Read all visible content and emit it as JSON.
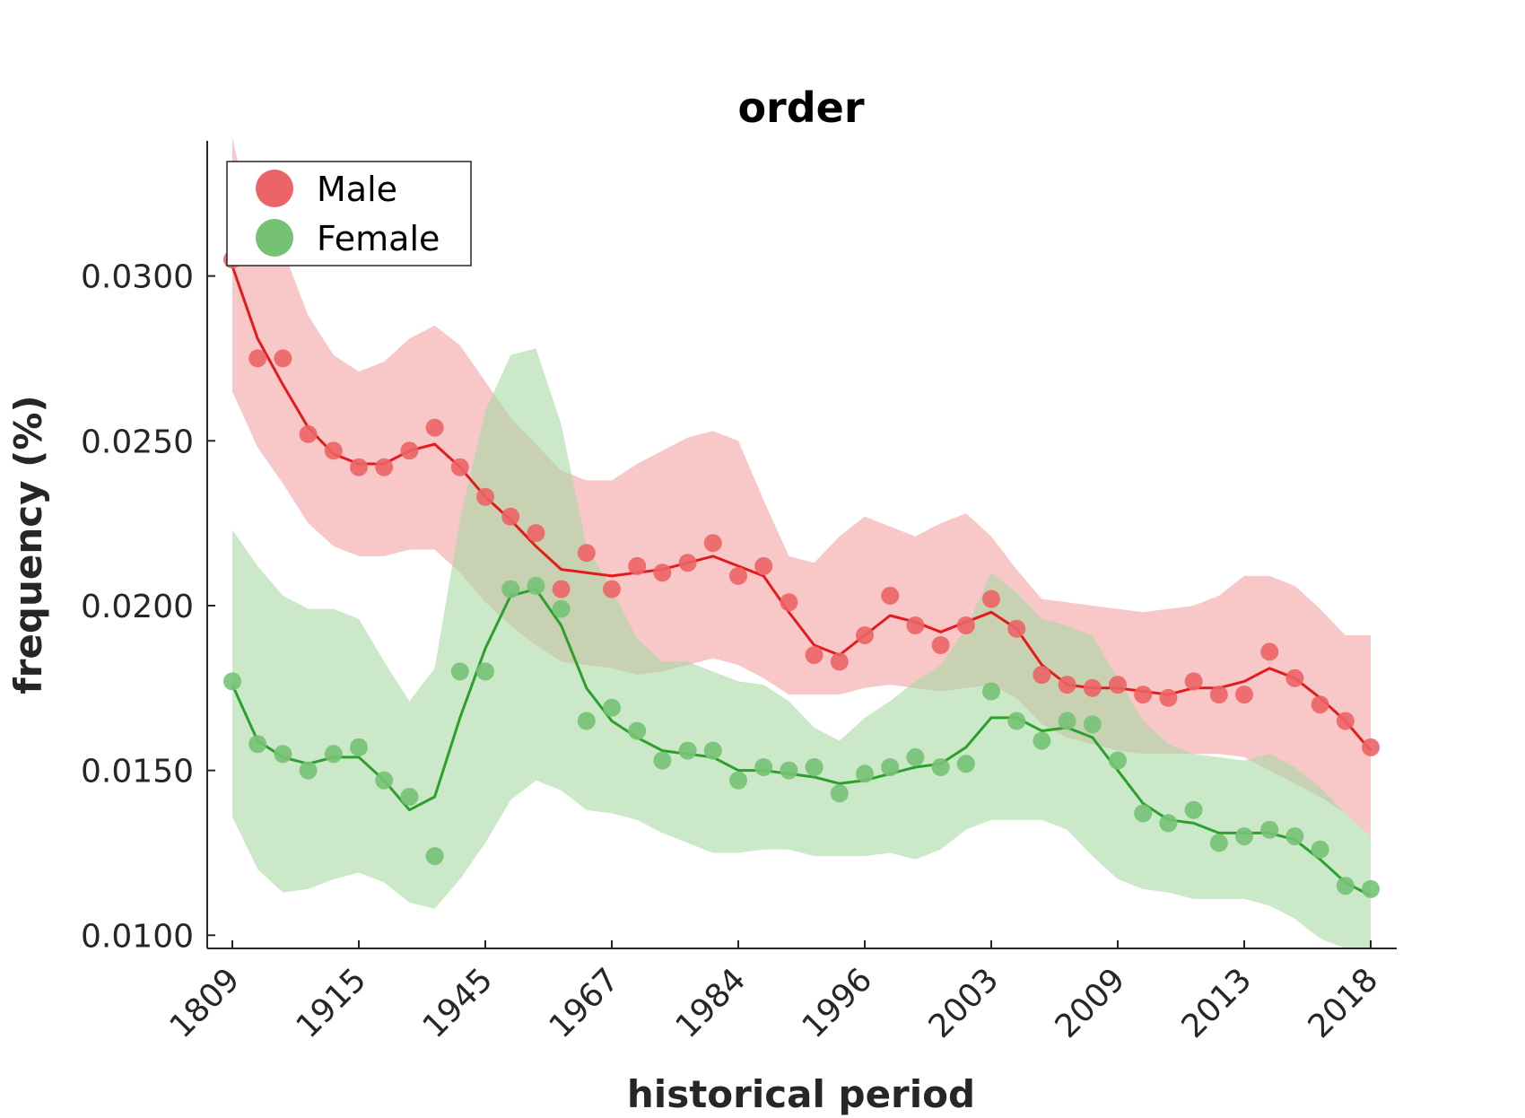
{
  "chart_data": {
    "type": "scatter",
    "title": "order",
    "xlabel": "historical period",
    "ylabel": "frequency (%)",
    "x_index": [
      1,
      46
    ],
    "xtick_positions": [
      1,
      6,
      11,
      16,
      21,
      26,
      31,
      36,
      41,
      46
    ],
    "xtick_labels": [
      "1809",
      "1915",
      "1945",
      "1967",
      "1984",
      "1996",
      "2003",
      "2009",
      "2013",
      "2018"
    ],
    "ylim": [
      0.0096,
      0.0341
    ],
    "yticks": [
      0.01,
      0.015,
      0.02,
      0.025,
      0.03
    ],
    "ytick_labels": [
      "0.0100",
      "0.0150",
      "0.0200",
      "0.0250",
      "0.0300"
    ],
    "grid": false,
    "legend": {
      "placement": "top-left",
      "entries": [
        "Male",
        "Female"
      ]
    },
    "series": [
      {
        "name": "Male",
        "color": "#e41a1c",
        "marker_color": "#ec6466",
        "band_color": "#f4a3a4",
        "points": [
          0.0305,
          0.0275,
          0.0275,
          0.0252,
          0.0247,
          0.0242,
          0.0242,
          0.0247,
          0.0254,
          0.0242,
          0.0233,
          0.0227,
          0.0222,
          0.0205,
          0.0216,
          0.0205,
          0.0212,
          0.021,
          0.0213,
          0.0219,
          0.0209,
          0.0212,
          0.0201,
          0.0185,
          0.0183,
          0.0191,
          0.0203,
          0.0194,
          0.0188,
          0.0194,
          0.0202,
          0.0193,
          0.0179,
          0.0176,
          0.0175,
          0.0176,
          0.0173,
          0.0172,
          0.0177,
          0.0173,
          0.0173,
          0.0186,
          0.0178,
          0.017,
          0.0165,
          0.0157
        ],
        "line": [
          0.0303,
          0.0281,
          0.0267,
          0.0254,
          0.0246,
          0.0243,
          0.0243,
          0.0247,
          0.0249,
          0.0242,
          0.0233,
          0.0226,
          0.0218,
          0.0211,
          0.021,
          0.0209,
          0.021,
          0.0211,
          0.0213,
          0.0215,
          0.0212,
          0.0209,
          0.0198,
          0.0188,
          0.0185,
          0.0191,
          0.0197,
          0.0195,
          0.0192,
          0.0195,
          0.0198,
          0.0193,
          0.0182,
          0.0176,
          0.0175,
          0.0175,
          0.0174,
          0.0173,
          0.0175,
          0.0175,
          0.0177,
          0.0181,
          0.0178,
          0.0172,
          0.0165,
          0.0156
        ],
        "band_upper": [
          0.0342,
          0.0308,
          0.0308,
          0.0288,
          0.0276,
          0.0271,
          0.0274,
          0.0281,
          0.0285,
          0.0279,
          0.0268,
          0.0257,
          0.0249,
          0.0241,
          0.0238,
          0.0238,
          0.0243,
          0.0247,
          0.0251,
          0.0253,
          0.025,
          0.0232,
          0.0215,
          0.0213,
          0.0221,
          0.0227,
          0.0224,
          0.0221,
          0.0225,
          0.0228,
          0.0221,
          0.0211,
          0.0202,
          0.0201,
          0.02,
          0.0199,
          0.0198,
          0.0199,
          0.02,
          0.0203,
          0.0209,
          0.0209,
          0.0206,
          0.0199,
          0.0191,
          0.0191
        ],
        "band_lower": [
          0.0265,
          0.0248,
          0.0237,
          0.0225,
          0.0218,
          0.0215,
          0.0215,
          0.0217,
          0.0217,
          0.021,
          0.0201,
          0.0194,
          0.0188,
          0.0183,
          0.0182,
          0.0181,
          0.0179,
          0.018,
          0.0182,
          0.0184,
          0.0182,
          0.0178,
          0.0173,
          0.0173,
          0.0173,
          0.0175,
          0.0176,
          0.0175,
          0.0174,
          0.0175,
          0.0176,
          0.0172,
          0.0164,
          0.016,
          0.0158,
          0.0156,
          0.0155,
          0.0155,
          0.0155,
          0.0155,
          0.0154,
          0.015,
          0.0146,
          0.0142,
          0.0137,
          0.013
        ]
      },
      {
        "name": "Female",
        "color": "#2ca02c",
        "marker_color": "#75c275",
        "band_color": "#a8d8a3",
        "points": [
          0.0177,
          0.0158,
          0.0155,
          0.015,
          0.0155,
          0.0157,
          0.0147,
          0.0142,
          0.0124,
          0.018,
          0.018,
          0.0205,
          0.0206,
          0.0199,
          0.0165,
          0.0169,
          0.0162,
          0.0153,
          0.0156,
          0.0156,
          0.0147,
          0.0151,
          0.015,
          0.0151,
          0.0143,
          0.0149,
          0.0151,
          0.0154,
          0.0151,
          0.0152,
          0.0174,
          0.0165,
          0.0159,
          0.0165,
          0.0164,
          0.0153,
          0.0137,
          0.0134,
          0.0138,
          0.0128,
          0.013,
          0.0132,
          0.013,
          0.0126,
          0.0115,
          0.0114
        ],
        "line": [
          0.0176,
          0.0159,
          0.0154,
          0.0152,
          0.0154,
          0.0154,
          0.0147,
          0.0138,
          0.0142,
          0.0166,
          0.0187,
          0.0203,
          0.0205,
          0.0194,
          0.0175,
          0.0165,
          0.016,
          0.0156,
          0.0155,
          0.0154,
          0.015,
          0.015,
          0.0149,
          0.0148,
          0.0146,
          0.0147,
          0.0149,
          0.0151,
          0.0152,
          0.0157,
          0.0166,
          0.0166,
          0.0162,
          0.0163,
          0.016,
          0.015,
          0.014,
          0.0135,
          0.0134,
          0.0131,
          0.0131,
          0.0131,
          0.0129,
          0.0123,
          0.0116,
          0.0112
        ],
        "band_upper": [
          0.0223,
          0.0212,
          0.0203,
          0.0199,
          0.0199,
          0.0196,
          0.0183,
          0.0171,
          0.0181,
          0.0226,
          0.0259,
          0.0276,
          0.0278,
          0.0255,
          0.0218,
          0.0205,
          0.019,
          0.0183,
          0.0183,
          0.018,
          0.0177,
          0.0176,
          0.0171,
          0.0163,
          0.0159,
          0.0166,
          0.0171,
          0.0177,
          0.0182,
          0.0193,
          0.021,
          0.0204,
          0.0196,
          0.0194,
          0.0191,
          0.0178,
          0.0165,
          0.0158,
          0.0155,
          0.0154,
          0.0153,
          0.0155,
          0.0151,
          0.0145,
          0.0137,
          0.013
        ],
        "band_lower": [
          0.0136,
          0.012,
          0.0113,
          0.0114,
          0.0117,
          0.0119,
          0.0116,
          0.011,
          0.0108,
          0.0117,
          0.0128,
          0.0141,
          0.0147,
          0.0144,
          0.0138,
          0.0137,
          0.0135,
          0.0131,
          0.0128,
          0.0125,
          0.0125,
          0.0126,
          0.0126,
          0.0124,
          0.0124,
          0.0124,
          0.0125,
          0.0123,
          0.0126,
          0.0132,
          0.0135,
          0.0135,
          0.0135,
          0.0132,
          0.0124,
          0.0117,
          0.0114,
          0.0113,
          0.0111,
          0.0111,
          0.0111,
          0.0109,
          0.0105,
          0.0099,
          0.0096,
          0.0096
        ]
      }
    ]
  }
}
